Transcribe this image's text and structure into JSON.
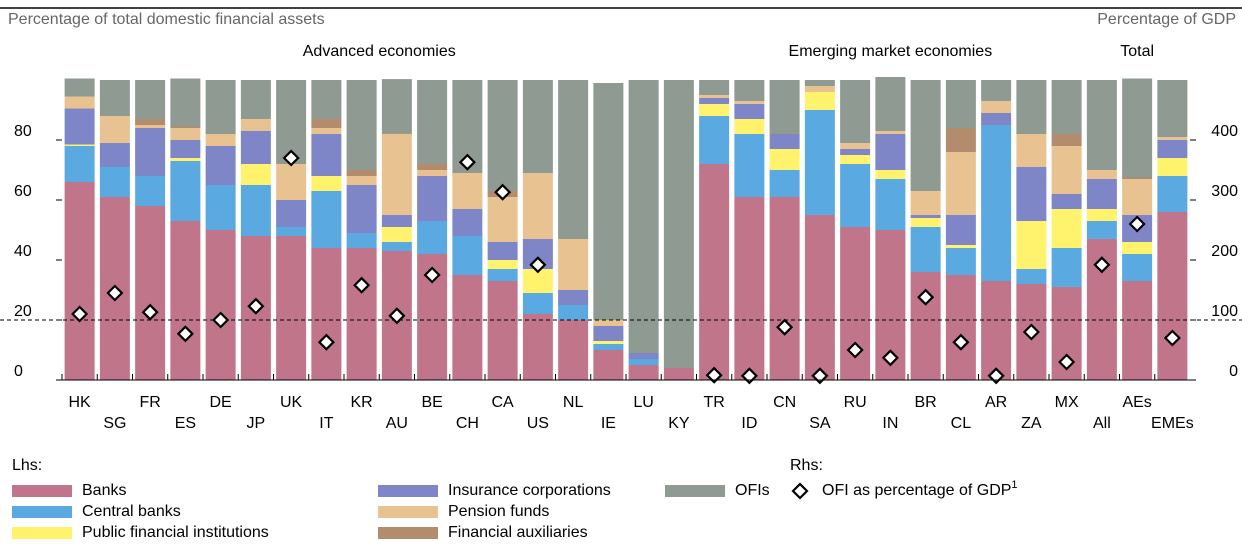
{
  "chart_data": {
    "type": "bar",
    "stacked": true,
    "y_label": "Percentage of total domestic financial assets",
    "y2_label": "Percentage of GDP",
    "groups": [
      {
        "label": "Advanced economies",
        "from": 0,
        "to": 17
      },
      {
        "label": "Emerging market economies",
        "from": 18,
        "to": 28
      },
      {
        "label": "Total",
        "from": 29,
        "to": 31
      }
    ],
    "categories": [
      "HK",
      "SG",
      "FR",
      "ES",
      "DE",
      "JP",
      "UK",
      "IT",
      "KR",
      "AU",
      "BE",
      "CH",
      "CA",
      "US",
      "NL",
      "IE",
      "LU",
      "KY",
      "TR",
      "ID",
      "CN",
      "SA",
      "RU",
      "IN",
      "BR",
      "CL",
      "AR",
      "ZA",
      "MX",
      "All",
      "AEs",
      "EMEs"
    ],
    "legend_lhs_label": "Lhs:",
    "legend_rhs_label": "Rhs:",
    "series": [
      {
        "name": "Banks",
        "color": "#c0758a",
        "values": [
          66,
          61,
          58,
          53,
          50,
          48,
          48,
          44,
          44,
          43,
          42,
          35,
          33,
          22,
          20,
          10,
          5,
          4,
          72,
          61,
          61,
          55,
          51,
          50,
          36,
          35,
          33,
          32,
          31,
          47,
          33,
          56
        ]
      },
      {
        "name": "Central banks",
        "color": "#5aa9e0",
        "values": [
          12,
          10,
          10,
          20,
          15,
          17,
          3,
          19,
          5,
          3,
          11,
          13,
          4,
          7,
          5,
          2,
          2,
          0,
          16,
          21,
          9,
          35,
          21,
          17,
          15,
          9,
          52,
          5,
          13,
          6,
          9,
          12
        ]
      },
      {
        "name": "Public financial institutions",
        "color": "#fff36e",
        "values": [
          0.5,
          0,
          0,
          1,
          0,
          7,
          0,
          5,
          0,
          5,
          0,
          0,
          3,
          8,
          0,
          1,
          0,
          0,
          4,
          5,
          7,
          6,
          3,
          3,
          3,
          1,
          0,
          16,
          13,
          4,
          4,
          6
        ]
      },
      {
        "name": "Insurance corporations",
        "color": "#7f86c8",
        "values": [
          12,
          8,
          16,
          6,
          13,
          11,
          9,
          14,
          16,
          4,
          15,
          9,
          6,
          10,
          5,
          5,
          2,
          0,
          2,
          5,
          5,
          0,
          2,
          12,
          1,
          10,
          4,
          18,
          5,
          10,
          9,
          6
        ]
      },
      {
        "name": "Pension funds",
        "color": "#e8c391",
        "values": [
          4,
          9,
          1,
          4,
          4,
          4,
          12,
          2,
          3,
          27,
          2,
          12,
          15,
          22,
          17,
          2,
          0,
          0,
          1,
          1,
          0,
          2,
          2,
          1,
          8,
          21,
          4,
          11,
          16,
          3,
          12,
          1
        ]
      },
      {
        "name": "Financial auxiliaries",
        "color": "#b38b6d",
        "values": [
          0,
          0,
          2,
          0.5,
          0,
          0,
          0,
          3,
          2,
          0.3,
          2,
          0,
          2,
          0,
          0,
          0,
          0,
          0,
          0,
          0,
          0,
          0,
          0,
          0,
          0,
          8,
          0,
          0,
          4,
          0,
          0.5,
          0
        ]
      },
      {
        "name": "OFIs",
        "color": "#8f9a92",
        "values": [
          6,
          12,
          13,
          16,
          18,
          13,
          28,
          13,
          30,
          18,
          28,
          31,
          37,
          31,
          53,
          79,
          91,
          96,
          5,
          7,
          18,
          2,
          21,
          18,
          37,
          16,
          7,
          18,
          18,
          30,
          33,
          19
        ]
      },
      {
        "name": "OFI as percentage of GDP",
        "footnote_marker": "1",
        "axis": "y2",
        "marker": "diamond",
        "color": "#000000",
        "values": [
          110,
          145,
          113,
          77,
          100,
          123,
          370,
          63,
          158,
          107,
          175,
          363,
          313,
          192,
          null,
          null,
          null,
          null,
          8,
          7,
          88,
          7,
          50,
          37,
          138,
          63,
          7,
          80,
          30,
          192,
          260,
          70
        ]
      }
    ],
    "ylim": [
      0,
      100
    ],
    "yticks": [
      0,
      20,
      40,
      60,
      80
    ],
    "y2lim": [
      0,
      500
    ],
    "y2ticks": [
      0,
      100,
      200,
      300,
      400
    ],
    "hline_y2": 100
  }
}
